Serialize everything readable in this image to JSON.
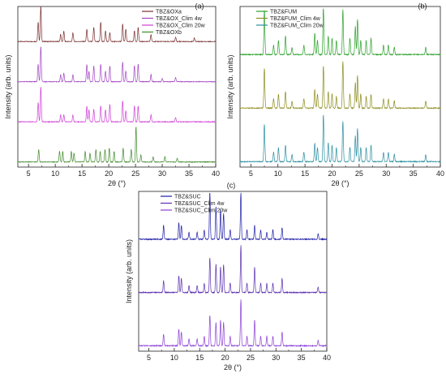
{
  "figure": {
    "panel_labels": [
      "(a)",
      "(b)",
      "(c)"
    ]
  },
  "chart_data": [
    {
      "type": "line",
      "panel": "(a)",
      "title": "",
      "xlabel": "2θ (°)",
      "ylabel": "Intensity (arb. units)",
      "xlim": [
        3,
        40
      ],
      "x_ticks": [
        5,
        10,
        15,
        20,
        25,
        30,
        35,
        40
      ],
      "grid": false,
      "y_ticks_shown": false,
      "legend": {
        "placement": "top-right"
      },
      "series": [
        {
          "name": "TBZ&OXa",
          "color": "#7a2f2f",
          "peaks": [
            [
              6.8,
              0.55
            ],
            [
              7.3,
              1.0
            ],
            [
              11.0,
              0.2
            ],
            [
              11.6,
              0.3
            ],
            [
              13.3,
              0.25
            ],
            [
              15.9,
              0.35
            ],
            [
              17.2,
              0.4
            ],
            [
              18.5,
              0.55
            ],
            [
              19.4,
              0.3
            ],
            [
              20.2,
              0.25
            ],
            [
              22.6,
              0.5
            ],
            [
              23.2,
              0.35
            ],
            [
              24.8,
              0.3
            ],
            [
              25.5,
              0.4
            ],
            [
              27.9,
              0.2
            ],
            [
              32.5,
              0.12
            ],
            [
              36.0,
              0.1
            ]
          ]
        },
        {
          "name": "TBZ&OX_Clim 4w",
          "color": "#a245c4",
          "peaks": [
            [
              6.8,
              0.5
            ],
            [
              7.3,
              1.0
            ],
            [
              11.0,
              0.2
            ],
            [
              11.6,
              0.25
            ],
            [
              13.3,
              0.2
            ],
            [
              15.9,
              0.5
            ],
            [
              16.3,
              0.3
            ],
            [
              17.2,
              0.45
            ],
            [
              18.5,
              0.5
            ],
            [
              19.4,
              0.3
            ],
            [
              20.2,
              0.45
            ],
            [
              22.6,
              0.55
            ],
            [
              23.2,
              0.3
            ],
            [
              24.8,
              0.45
            ],
            [
              25.5,
              0.5
            ],
            [
              27.9,
              0.2
            ],
            [
              30.0,
              0.1
            ],
            [
              32.5,
              0.12
            ]
          ]
        },
        {
          "name": "TBZ&OX_Clim 20w",
          "color": "#d03fd6",
          "peaks": [
            [
              6.8,
              0.55
            ],
            [
              7.3,
              1.0
            ],
            [
              11.0,
              0.2
            ],
            [
              11.6,
              0.2
            ],
            [
              13.3,
              0.2
            ],
            [
              15.9,
              0.45
            ],
            [
              16.3,
              0.35
            ],
            [
              17.2,
              0.35
            ],
            [
              18.5,
              0.45
            ],
            [
              19.4,
              0.35
            ],
            [
              20.2,
              0.5
            ],
            [
              22.6,
              0.6
            ],
            [
              23.2,
              0.3
            ],
            [
              24.8,
              0.45
            ],
            [
              25.5,
              0.45
            ],
            [
              27.9,
              0.2
            ],
            [
              32.5,
              0.12
            ]
          ]
        },
        {
          "name": "TBZ&OXb",
          "color": "#3f8a2a",
          "peaks": [
            [
              6.9,
              0.35
            ],
            [
              10.8,
              0.3
            ],
            [
              11.4,
              0.3
            ],
            [
              13.0,
              0.3
            ],
            [
              13.5,
              0.25
            ],
            [
              15.6,
              0.3
            ],
            [
              16.5,
              0.25
            ],
            [
              17.6,
              0.35
            ],
            [
              18.4,
              0.3
            ],
            [
              19.3,
              0.35
            ],
            [
              20.1,
              0.4
            ],
            [
              21.0,
              0.3
            ],
            [
              22.7,
              0.4
            ],
            [
              24.2,
              0.35
            ],
            [
              25.1,
              1.0
            ],
            [
              26.0,
              0.2
            ],
            [
              28.3,
              0.15
            ],
            [
              30.5,
              0.15
            ],
            [
              32.8,
              0.1
            ]
          ]
        }
      ]
    },
    {
      "type": "line",
      "panel": "(b)",
      "title": "",
      "xlabel": "2θ (°)",
      "ylabel": "Intensity (arb. units)",
      "xlim": [
        3,
        40
      ],
      "x_ticks": [
        5,
        10,
        15,
        20,
        25,
        30,
        35,
        40
      ],
      "grid": false,
      "y_ticks_shown": false,
      "legend": {
        "placement": "top-left"
      },
      "series": [
        {
          "name": "TBZ&FUM",
          "color": "#2aa02a",
          "peaks": [
            [
              7.5,
              0.95
            ],
            [
              9.2,
              0.2
            ],
            [
              10.1,
              0.3
            ],
            [
              11.4,
              0.4
            ],
            [
              12.6,
              0.15
            ],
            [
              14.8,
              0.2
            ],
            [
              16.8,
              0.45
            ],
            [
              17.3,
              0.3
            ],
            [
              18.4,
              1.0
            ],
            [
              19.3,
              0.4
            ],
            [
              20.0,
              0.35
            ],
            [
              20.8,
              0.3
            ],
            [
              22.0,
              0.95
            ],
            [
              23.3,
              0.35
            ],
            [
              24.3,
              0.6
            ],
            [
              24.7,
              0.75
            ],
            [
              25.3,
              0.3
            ],
            [
              26.3,
              0.3
            ],
            [
              27.2,
              0.35
            ],
            [
              29.5,
              0.2
            ],
            [
              30.4,
              0.2
            ],
            [
              31.5,
              0.15
            ],
            [
              37.3,
              0.15
            ]
          ]
        },
        {
          "name": "TBZ&FUM_Clim 4w",
          "color": "#8c8c1e",
          "peaks": [
            [
              7.5,
              0.85
            ],
            [
              9.2,
              0.2
            ],
            [
              10.1,
              0.3
            ],
            [
              11.4,
              0.35
            ],
            [
              12.6,
              0.15
            ],
            [
              14.8,
              0.2
            ],
            [
              16.8,
              0.4
            ],
            [
              17.3,
              0.3
            ],
            [
              18.4,
              0.9
            ],
            [
              19.3,
              0.35
            ],
            [
              20.0,
              0.3
            ],
            [
              20.8,
              0.25
            ],
            [
              22.0,
              1.0
            ],
            [
              23.3,
              0.3
            ],
            [
              24.3,
              0.55
            ],
            [
              24.7,
              0.7
            ],
            [
              25.3,
              0.3
            ],
            [
              26.3,
              0.25
            ],
            [
              27.2,
              0.3
            ],
            [
              29.5,
              0.2
            ],
            [
              30.4,
              0.2
            ],
            [
              31.5,
              0.15
            ],
            [
              37.3,
              0.15
            ]
          ]
        },
        {
          "name": "TBZ&FUM_Clim 20w",
          "color": "#2a8fa0",
          "peaks": [
            [
              7.5,
              0.8
            ],
            [
              9.2,
              0.2
            ],
            [
              10.1,
              0.3
            ],
            [
              11.4,
              0.35
            ],
            [
              12.6,
              0.15
            ],
            [
              14.8,
              0.2
            ],
            [
              16.8,
              0.4
            ],
            [
              17.3,
              0.3
            ],
            [
              18.4,
              1.0
            ],
            [
              19.3,
              0.4
            ],
            [
              20.0,
              0.35
            ],
            [
              20.8,
              0.3
            ],
            [
              22.0,
              0.85
            ],
            [
              23.3,
              0.3
            ],
            [
              24.3,
              0.55
            ],
            [
              24.7,
              0.7
            ],
            [
              25.3,
              0.3
            ],
            [
              26.3,
              0.3
            ],
            [
              27.2,
              0.35
            ],
            [
              29.5,
              0.2
            ],
            [
              30.4,
              0.2
            ],
            [
              31.5,
              0.15
            ],
            [
              37.3,
              0.15
            ]
          ]
        }
      ]
    },
    {
      "type": "line",
      "panel": "(c)",
      "title": "",
      "xlabel": "2θ (°)",
      "ylabel": "Intensity (arb. units)",
      "xlim": [
        3,
        40
      ],
      "x_ticks": [
        5,
        10,
        15,
        20,
        25,
        30,
        35,
        40
      ],
      "grid": false,
      "y_ticks_shown": false,
      "legend": {
        "placement": "top-left"
      },
      "series": [
        {
          "name": "TBZ&SUC",
          "color": "#1f1fa8",
          "peaks": [
            [
              7.9,
              0.3
            ],
            [
              10.9,
              0.35
            ],
            [
              11.4,
              0.3
            ],
            [
              12.9,
              0.15
            ],
            [
              14.5,
              0.15
            ],
            [
              15.9,
              0.2
            ],
            [
              17.0,
              1.0
            ],
            [
              18.2,
              0.7
            ],
            [
              19.1,
              0.65
            ],
            [
              19.7,
              0.55
            ],
            [
              21.0,
              0.2
            ],
            [
              23.1,
              1.0
            ],
            [
              24.3,
              0.2
            ],
            [
              25.8,
              0.3
            ],
            [
              27.0,
              0.2
            ],
            [
              28.2,
              0.15
            ],
            [
              29.4,
              0.2
            ],
            [
              31.2,
              0.25
            ],
            [
              38.3,
              0.12
            ]
          ]
        },
        {
          "name": "TBZ&SUC_Clim 4w",
          "color": "#5a2fb0",
          "peaks": [
            [
              7.9,
              0.25
            ],
            [
              10.9,
              0.35
            ],
            [
              11.4,
              0.3
            ],
            [
              12.9,
              0.15
            ],
            [
              14.5,
              0.15
            ],
            [
              15.9,
              0.2
            ],
            [
              17.0,
              0.75
            ],
            [
              18.2,
              0.6
            ],
            [
              19.1,
              0.55
            ],
            [
              19.7,
              0.6
            ],
            [
              21.0,
              0.2
            ],
            [
              23.1,
              1.0
            ],
            [
              24.3,
              0.2
            ],
            [
              25.8,
              0.55
            ],
            [
              27.0,
              0.2
            ],
            [
              28.2,
              0.2
            ],
            [
              29.4,
              0.2
            ],
            [
              31.2,
              0.3
            ],
            [
              38.3,
              0.12
            ]
          ]
        },
        {
          "name": "TBZ&SUC_Clim 20w",
          "color": "#8a3fd6",
          "peaks": [
            [
              7.9,
              0.25
            ],
            [
              10.9,
              0.35
            ],
            [
              11.4,
              0.3
            ],
            [
              12.9,
              0.15
            ],
            [
              14.5,
              0.15
            ],
            [
              15.9,
              0.2
            ],
            [
              17.0,
              0.65
            ],
            [
              18.2,
              0.5
            ],
            [
              19.1,
              0.55
            ],
            [
              19.7,
              0.5
            ],
            [
              21.0,
              0.2
            ],
            [
              23.1,
              1.0
            ],
            [
              24.3,
              0.2
            ],
            [
              25.8,
              0.55
            ],
            [
              27.0,
              0.2
            ],
            [
              28.2,
              0.2
            ],
            [
              29.4,
              0.2
            ],
            [
              31.2,
              0.3
            ],
            [
              38.3,
              0.12
            ]
          ]
        }
      ]
    }
  ]
}
